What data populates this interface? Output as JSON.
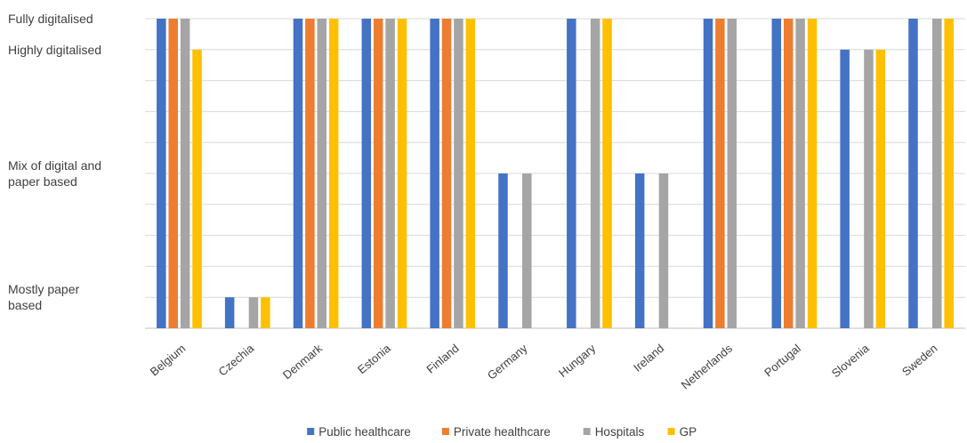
{
  "chart_data": {
    "type": "bar",
    "title": "",
    "xlabel": "",
    "ylabel": "",
    "ylim": [
      0,
      10
    ],
    "y_ticks": [
      {
        "value": 10,
        "lines": [
          "Fully digitalised"
        ]
      },
      {
        "value": 9,
        "lines": [
          "Highly digitalised"
        ]
      },
      {
        "value": 5,
        "lines": [
          "Mix of digital and",
          "paper based"
        ]
      },
      {
        "value": 1,
        "lines": [
          "Mostly paper",
          "based"
        ]
      }
    ],
    "categories": [
      "Belgium",
      "Czechia",
      "Denmark",
      "Estonia",
      "Finland",
      "Germany",
      "Hungary",
      "Ireland",
      "Netherlands",
      "Portugal",
      "Slovenia",
      "Sweden"
    ],
    "series": [
      {
        "name": "Public healthcare",
        "color": "#4472c4",
        "values": [
          10,
          1,
          10,
          10,
          10,
          5,
          10,
          5,
          10,
          10,
          9,
          10
        ]
      },
      {
        "name": "Private healthcare",
        "color": "#ed7d31",
        "values": [
          10,
          0,
          10,
          10,
          10,
          0,
          0,
          0,
          10,
          10,
          0,
          0
        ]
      },
      {
        "name": "Hospitals",
        "color": "#a5a5a5",
        "values": [
          10,
          1,
          10,
          10,
          10,
          5,
          10,
          5,
          10,
          10,
          9,
          10
        ]
      },
      {
        "name": "GP",
        "color": "#ffc000",
        "values": [
          9,
          1,
          10,
          10,
          10,
          0,
          10,
          0,
          0,
          10,
          9,
          10
        ]
      }
    ],
    "grid": true,
    "legend_position": "bottom"
  }
}
